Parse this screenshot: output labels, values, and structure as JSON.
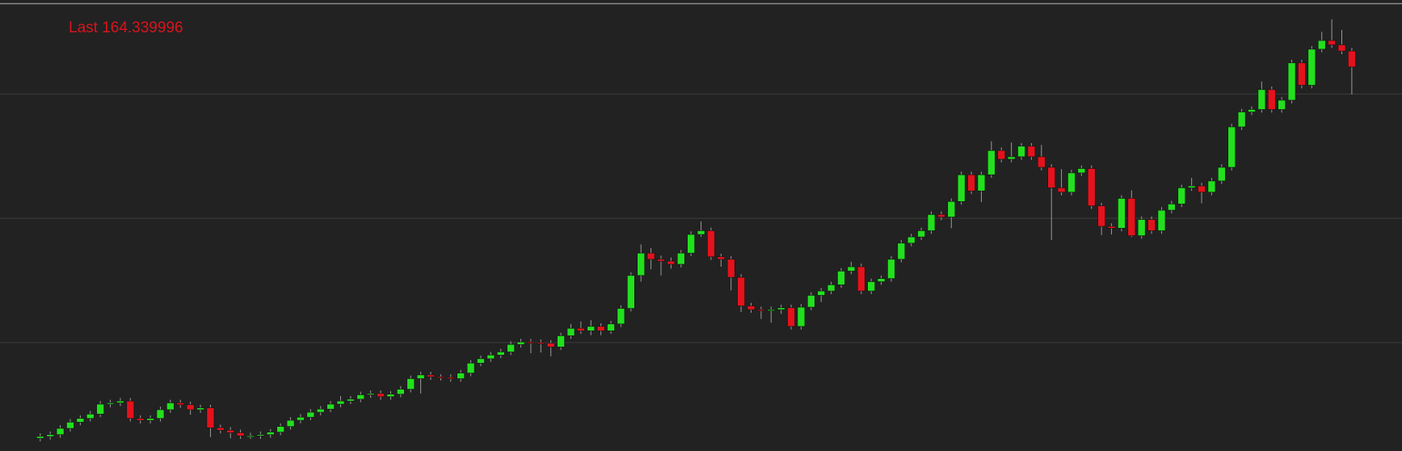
{
  "chart_data": {
    "type": "candlestick",
    "title": "Last 164.339996",
    "open": [
      104.6,
      104.9,
      105.2,
      106.2,
      107.2,
      107.8,
      108.5,
      110.1,
      110.3,
      110.6,
      107.8,
      107.5,
      107.8,
      109.2,
      110.3,
      110.0,
      109.2,
      109.5,
      106.3,
      105.9,
      105.5,
      105.0,
      105.0,
      105.2,
      105.6,
      106.5,
      107.5,
      108.0,
      108.8,
      109.3,
      110.1,
      110.6,
      110.9,
      111.6,
      111.8,
      111.3,
      111.7,
      112.5,
      114.2,
      114.8,
      114.5,
      114.4,
      114.2,
      115.1,
      116.7,
      117.4,
      118.0,
      118.5,
      119.7,
      120.1,
      120.0,
      119.9,
      119.3,
      121.1,
      122.3,
      121.9,
      122.6,
      121.9,
      123.0,
      125.5,
      130.8,
      134.4,
      133.4,
      133.1,
      132.6,
      134.4,
      137.4,
      138.0,
      133.8,
      133.4,
      130.5,
      125.9,
      125.3,
      125.2,
      125.3,
      125.6,
      122.6,
      125.7,
      127.6,
      128.3,
      129.3,
      131.5,
      132.2,
      128.3,
      129.8,
      130.3,
      133.4,
      136.0,
      137.0,
      138.0,
      140.6,
      140.2,
      142.7,
      147.0,
      144.4,
      147.0,
      150.9,
      149.5,
      149.9,
      151.6,
      149.9,
      148.2,
      144.9,
      144.2,
      147.3,
      148.0,
      142.0,
      138.7,
      138.4,
      143.2,
      137.2,
      139.8,
      138.0,
      141.3,
      142.3,
      144.9,
      145.2,
      144.2,
      146.0,
      148.2,
      154.7,
      157.1,
      157.5,
      160.7,
      157.5,
      159.0,
      165.0,
      161.4,
      167.2,
      168.6,
      167.9,
      166.9
    ],
    "high": [
      105.4,
      105.7,
      106.7,
      107.7,
      108.3,
      109.0,
      110.6,
      110.8,
      111.1,
      111.1,
      108.3,
      108.3,
      109.7,
      110.8,
      110.8,
      110.5,
      110.0,
      110.0,
      106.8,
      106.4,
      106.0,
      105.5,
      105.7,
      106.1,
      107.0,
      108.0,
      108.5,
      109.3,
      109.8,
      110.6,
      111.4,
      111.4,
      112.1,
      112.3,
      112.3,
      112.2,
      113.0,
      114.7,
      115.3,
      115.3,
      114.9,
      114.9,
      115.6,
      117.2,
      117.9,
      118.5,
      119.0,
      120.2,
      120.6,
      120.6,
      120.5,
      120.4,
      121.6,
      123.0,
      123.4,
      123.6,
      123.1,
      123.5,
      126.0,
      131.3,
      135.8,
      135.2,
      134.0,
      133.7,
      134.9,
      137.9,
      139.5,
      138.5,
      134.3,
      133.9,
      131.0,
      126.4,
      125.8,
      125.8,
      126.1,
      126.1,
      126.2,
      128.1,
      128.8,
      129.8,
      132.0,
      133.0,
      132.7,
      130.3,
      130.8,
      133.9,
      136.5,
      137.5,
      138.5,
      141.1,
      141.1,
      143.2,
      147.5,
      147.5,
      147.5,
      152.4,
      151.4,
      152.2,
      152.1,
      152.1,
      151.8,
      148.7,
      147.9,
      147.8,
      148.5,
      148.5,
      142.5,
      139.2,
      143.7,
      144.5,
      140.3,
      140.3,
      141.8,
      142.8,
      145.4,
      146.5,
      145.7,
      146.5,
      148.7,
      155.2,
      157.6,
      158.0,
      162.0,
      161.2,
      159.5,
      165.5,
      165.5,
      167.7,
      170.0,
      172.0,
      170.3,
      167.4
    ],
    "low": [
      104.1,
      104.4,
      104.7,
      105.7,
      106.7,
      107.3,
      108.0,
      109.6,
      109.8,
      107.3,
      107.0,
      107.0,
      107.3,
      108.7,
      109.5,
      108.4,
      108.7,
      104.8,
      105.4,
      104.6,
      104.5,
      104.5,
      104.5,
      104.7,
      105.1,
      106.0,
      107.0,
      107.5,
      108.3,
      108.8,
      109.6,
      110.1,
      110.4,
      111.1,
      110.8,
      110.8,
      111.2,
      112.0,
      111.8,
      114.0,
      113.9,
      113.7,
      113.7,
      114.6,
      116.2,
      116.9,
      117.5,
      118.0,
      119.2,
      118.3,
      118.4,
      117.8,
      118.8,
      120.6,
      121.4,
      121.2,
      121.2,
      121.4,
      122.5,
      125.0,
      129.8,
      131.8,
      130.8,
      131.9,
      132.1,
      133.9,
      137.0,
      133.3,
      132.2,
      128.4,
      124.9,
      124.8,
      123.8,
      123.2,
      124.6,
      122.1,
      122.1,
      125.2,
      126.5,
      127.8,
      128.8,
      131.0,
      127.8,
      127.8,
      129.3,
      129.8,
      132.9,
      135.5,
      136.5,
      137.5,
      139.7,
      138.4,
      142.2,
      143.9,
      142.6,
      146.5,
      149.0,
      149.0,
      149.4,
      149.4,
      147.7,
      136.5,
      143.7,
      143.7,
      146.8,
      141.5,
      137.3,
      137.4,
      137.9,
      137.0,
      136.7,
      137.5,
      137.5,
      140.8,
      141.8,
      144.4,
      142.4,
      143.7,
      145.5,
      147.7,
      154.2,
      156.6,
      157.0,
      157.0,
      157.0,
      158.5,
      160.9,
      160.9,
      166.7,
      167.4,
      166.4,
      159.9
    ],
    "close": [
      104.9,
      105.2,
      106.2,
      107.2,
      107.8,
      108.5,
      110.1,
      110.3,
      110.6,
      107.8,
      107.5,
      107.8,
      109.2,
      110.3,
      110.0,
      109.2,
      109.5,
      106.3,
      105.9,
      105.5,
      105.0,
      105.0,
      105.2,
      105.6,
      106.5,
      107.5,
      108.0,
      108.8,
      109.3,
      110.1,
      110.6,
      110.9,
      111.6,
      111.8,
      111.3,
      111.7,
      112.5,
      114.2,
      114.8,
      114.5,
      114.4,
      114.2,
      115.1,
      116.7,
      117.4,
      118.0,
      118.5,
      119.7,
      120.1,
      120.0,
      119.9,
      119.3,
      121.1,
      122.3,
      121.9,
      122.6,
      121.9,
      123.0,
      125.5,
      130.8,
      134.4,
      133.4,
      133.1,
      132.6,
      134.4,
      137.4,
      138.0,
      133.8,
      133.4,
      130.5,
      125.9,
      125.3,
      125.2,
      125.3,
      125.6,
      122.6,
      125.7,
      127.6,
      128.3,
      129.3,
      131.5,
      132.2,
      128.3,
      129.8,
      130.3,
      133.4,
      136.0,
      137.0,
      138.0,
      140.6,
      140.2,
      142.7,
      147.0,
      144.4,
      147.0,
      150.9,
      149.5,
      149.9,
      151.6,
      149.9,
      148.2,
      144.9,
      144.2,
      147.3,
      148.0,
      142.0,
      138.7,
      138.4,
      143.2,
      137.2,
      139.8,
      138.0,
      141.3,
      142.3,
      144.9,
      145.2,
      144.2,
      146.0,
      148.2,
      154.7,
      157.1,
      157.5,
      160.7,
      157.5,
      159.0,
      165.0,
      161.4,
      167.2,
      168.6,
      167.9,
      166.9,
      164.34
    ],
    "up_color": "#22e01e",
    "down_color": "#e4121c",
    "wick_color": "#9a9a9a",
    "ylim": [
      102.6,
      174.4
    ],
    "gridlines": [
      120,
      140,
      160
    ],
    "grid": true
  }
}
